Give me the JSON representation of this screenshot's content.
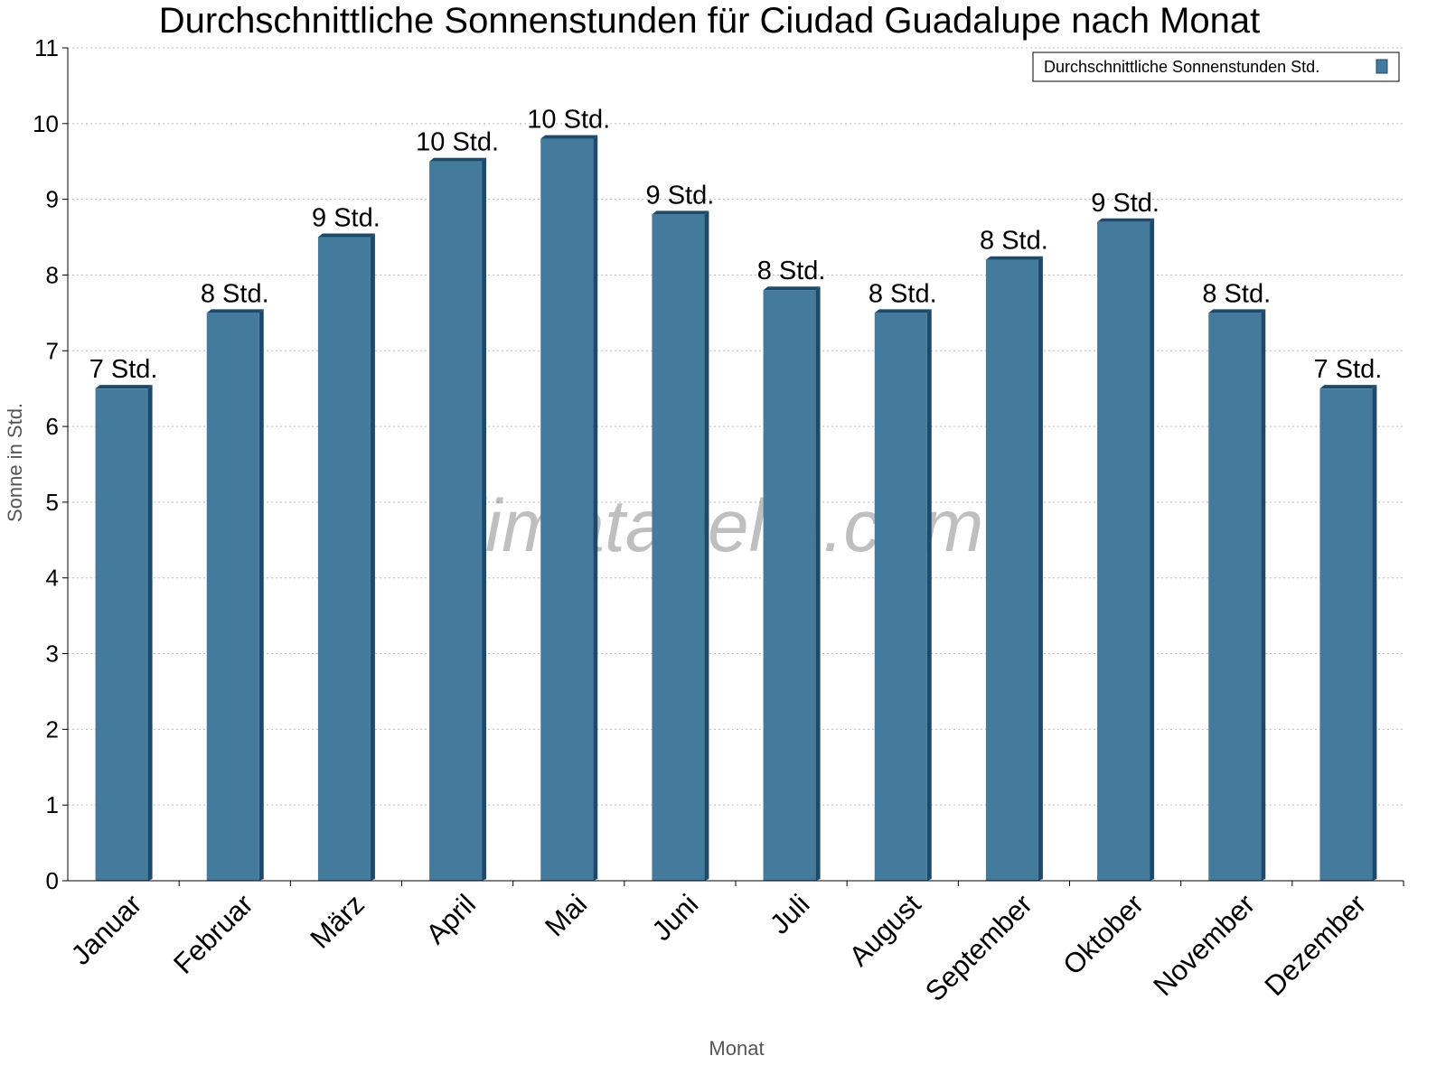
{
  "chart_data": {
    "type": "bar",
    "title": "Durchschnittliche Sonnenstunden für Ciudad Guadalupe nach Monat",
    "xlabel": "Monat",
    "ylabel": "Sonne in Std.",
    "ylim": [
      0,
      11
    ],
    "yticks": [
      "0",
      "1",
      "2",
      "3",
      "4",
      "5",
      "6",
      "7",
      "8",
      "9",
      "10",
      "11"
    ],
    "grid": true,
    "legend_position": "top-right",
    "watermark": "klimatabelle.com",
    "categories": [
      "Januar",
      "Februar",
      "März",
      "April",
      "Mai",
      "Juni",
      "Juli",
      "August",
      "September",
      "Oktober",
      "November",
      "Dezember"
    ],
    "series": [
      {
        "name": "Durchschnittliche Sonnenstunden Std.",
        "color": "#447a9c",
        "values": [
          6.5,
          7.5,
          8.5,
          9.5,
          9.8,
          8.8,
          7.8,
          7.5,
          8.2,
          8.7,
          7.5,
          6.5
        ],
        "labels": [
          "7 Std.",
          "8 Std.",
          "9 Std.",
          "10 Std.",
          "10 Std.",
          "9 Std.",
          "8 Std.",
          "8 Std.",
          "8 Std.",
          "9 Std.",
          "8 Std.",
          "7 Std."
        ]
      }
    ]
  }
}
